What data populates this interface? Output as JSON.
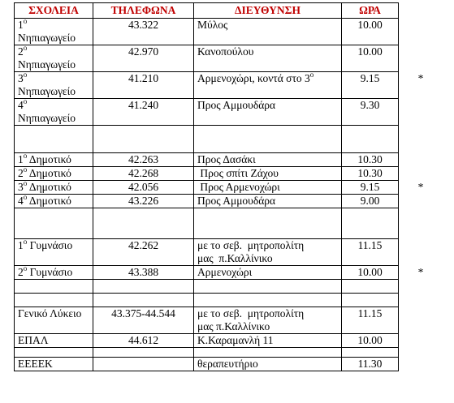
{
  "headers": {
    "school": "ΣΧΟΛΕΙΑ",
    "phone": "ΤΗΛΕΦΩΝΑ",
    "address": "ΔΙΕΥΘΥΝΣΗ",
    "time": "ΩΡΑ"
  },
  "rows": [
    {
      "num": "1",
      "sup": "ο",
      "school": "Νηπιαγωγείο",
      "phone": "43.322",
      "address": "Μύλος",
      "address_sup": "",
      "time": "10.00",
      "mark": ""
    },
    {
      "num": "2",
      "sup": "ο",
      "school": "Νηπιαγωγείο",
      "phone": "42.970",
      "address": "Κανοπούλου",
      "address_sup": "",
      "time": "10.00",
      "mark": ""
    },
    {
      "num": "3",
      "sup": "ο",
      "school": "Νηπιαγωγείο",
      "phone": "41.210",
      "address": "Αρμενοχώρι, κοντά στο 3",
      "address_sup": "ο",
      "time": "9.15",
      "mark": "*"
    },
    {
      "num": "4",
      "sup": "ο",
      "school": "Νηπιαγωγείο",
      "phone": "41.240",
      "address": "Προς Αμμουδάρα",
      "address_sup": "",
      "time": "9.30",
      "mark": ""
    },
    {
      "num": "1",
      "sup": "ο",
      "school": "Δημοτικό",
      "phone": "42.263",
      "address": "Προς Δασάκι",
      "address_sup": "",
      "time": "10.30",
      "mark": ""
    },
    {
      "num": "2",
      "sup": "ο",
      "school": "Δημοτικό",
      "phone": "42.268",
      "address": " Προς σπίτι Ζάχου",
      "address_sup": "",
      "time": "10.30",
      "mark": ""
    },
    {
      "num": "3",
      "sup": "ο",
      "school": "Δημοτικό",
      "phone": "42.056",
      "address": " Προς Αρμενοχώρι",
      "address_sup": "",
      "time": "9.15",
      "mark": "*"
    },
    {
      "num": "4",
      "sup": "ο",
      "school": "Δημοτικό",
      "phone": "43.226",
      "address": "Προς Αμμουδάρα",
      "address_sup": "",
      "time": "9.00",
      "mark": ""
    },
    {
      "num": "1",
      "sup": "ο",
      "school": "Γυμνάσιο",
      "phone": "42.262",
      "address": "με το σεβ.  μητροπολίτη",
      "address2": "μας  π.Καλλίνικο",
      "time": "11.15",
      "mark": ""
    },
    {
      "num": "2",
      "sup": "ο",
      "school": "Γυμνάσιο",
      "phone": "43.388",
      "address": "Αρμενοχώρι",
      "address_sup": "",
      "time": "10.00",
      "mark": "*"
    },
    {
      "num": "",
      "sup": "",
      "school": "Γενικό Λύκειο",
      "phone": "43.375-44.544",
      "address": "με το σεβ.  μητροπολίτη",
      "address2": "μας π.Καλλίνικο",
      "time": "11.15",
      "mark": ""
    },
    {
      "num": "",
      "sup": "",
      "school": "ΕΠΑΛ",
      "phone": "44.612",
      "address": "Κ.Καραμανλή 11",
      "address_sup": "",
      "time": "10.00",
      "mark": ""
    },
    {
      "num": "",
      "sup": "",
      "school": "ΕΕΕΕΚ",
      "phone": "",
      "address": "θεραπευτήριο",
      "address_sup": "",
      "time": "11.30",
      "mark": ""
    }
  ]
}
